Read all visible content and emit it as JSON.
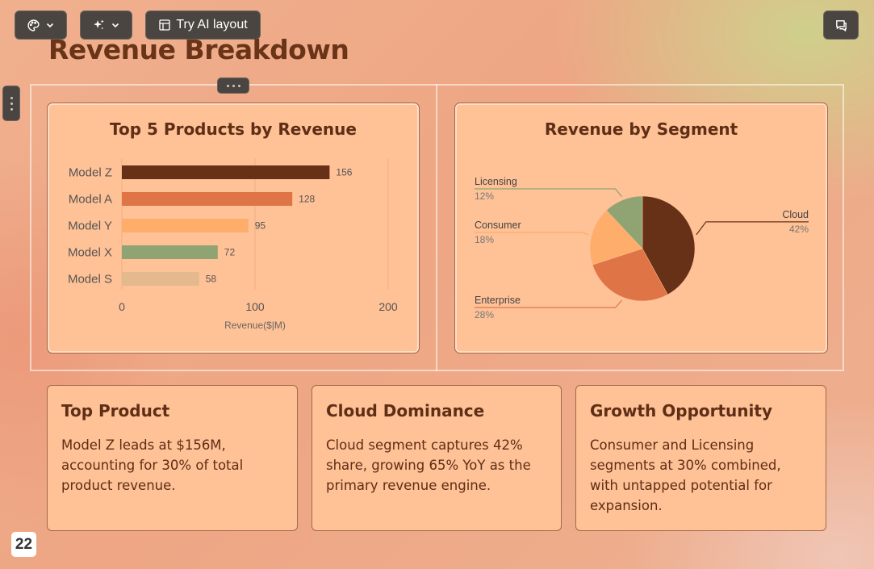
{
  "toolbar": {
    "ai_layout_label": "Try AI layout"
  },
  "page": {
    "title": "Revenue Breakdown",
    "page_number": "22"
  },
  "colors": {
    "dark_brown": "#673118",
    "orange": "#df7546",
    "light_orange": "#fead6a",
    "sage": "#8fa472",
    "tan": "#e3b98d"
  },
  "chart_data": [
    {
      "type": "bar",
      "orientation": "horizontal",
      "title": "Top 5 Products by Revenue",
      "categories": [
        "Model Z",
        "Model A",
        "Model Y",
        "Model X",
        "Model S"
      ],
      "values": [
        156,
        128,
        95,
        72,
        58
      ],
      "colors": [
        "#673118",
        "#df7546",
        "#fead6a",
        "#8fa472",
        "#e3b98d"
      ],
      "xlabel": "Revenue($|M)",
      "xlim": [
        0,
        200
      ],
      "xticks": [
        "0",
        "100",
        "200"
      ],
      "grid": true
    },
    {
      "type": "pie",
      "title": "Revenue by Segment",
      "labels": [
        "Cloud",
        "Enterprise",
        "Consumer",
        "Licensing"
      ],
      "values": [
        42,
        28,
        18,
        12
      ],
      "value_labels": [
        "42%",
        "28%",
        "18%",
        "12%"
      ],
      "colors": [
        "#673118",
        "#df7546",
        "#fead6a",
        "#8fa472"
      ]
    }
  ],
  "insights": [
    {
      "title": "Top Product",
      "text": "Model Z leads at $156M, accounting for 30% of total product revenue."
    },
    {
      "title": "Cloud Dominance",
      "text": "Cloud segment captures 42% share, growing 65% YoY as the primary revenue engine."
    },
    {
      "title": "Growth Opportunity",
      "text": "Consumer and Licensing segments at 30% combined, with untapped potential for expansion."
    }
  ]
}
